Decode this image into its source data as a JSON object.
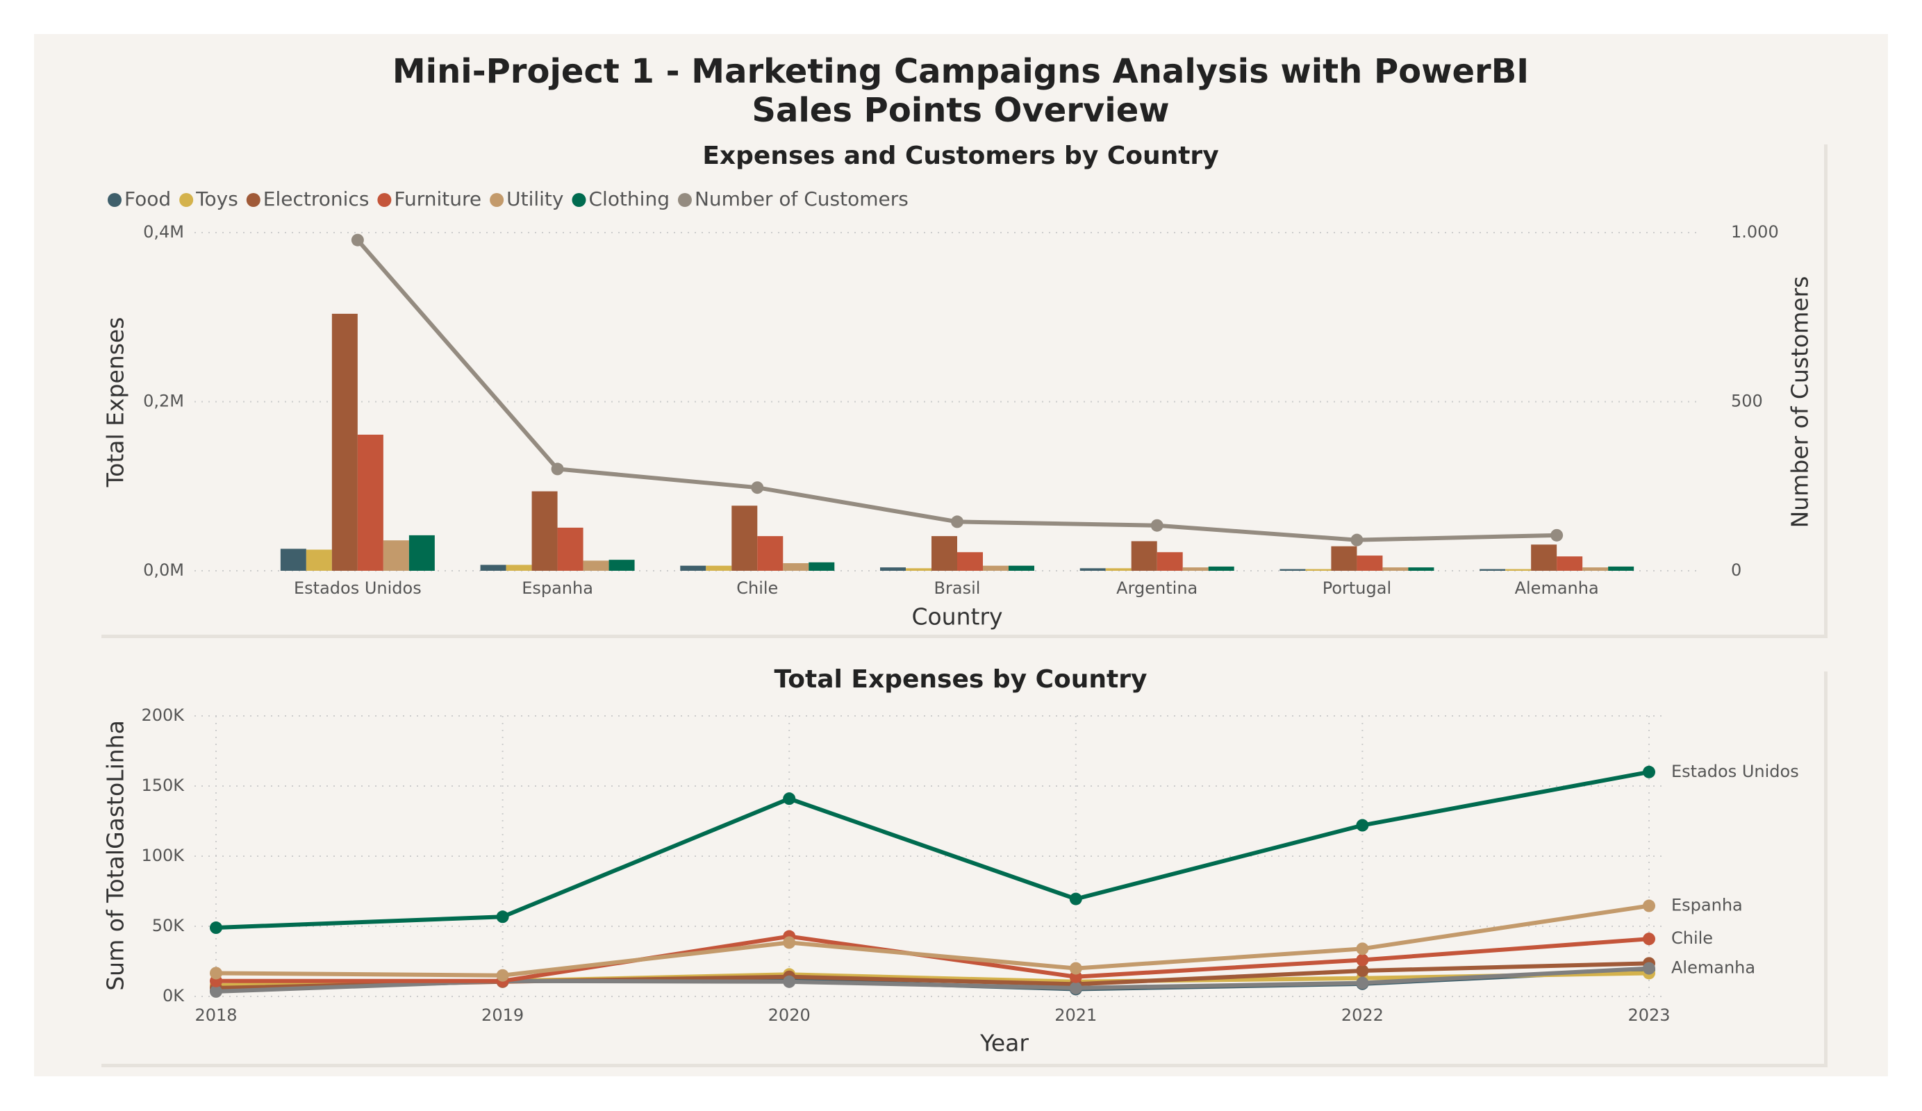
{
  "title": "Mini-Project 1 - Marketing Campaigns Analysis with PowerBI",
  "subtitle": "Sales Points Overview",
  "chart_data": [
    {
      "type": "bar",
      "title": "Expenses and Customers by Country",
      "x_label": "Country",
      "y_label": "Total Expenses",
      "y2_label": "Number of Customers",
      "categories": [
        "Estados Unidos",
        "Espanha",
        "Chile",
        "Brasil",
        "Argentina",
        "Portugal",
        "Alemanha"
      ],
      "series": [
        {
          "name": "Food",
          "color": "#3f5f6b",
          "values": [
            0.026,
            0.007,
            0.006,
            0.004,
            0.003,
            0.002,
            0.002
          ]
        },
        {
          "name": "Toys",
          "color": "#d4b24c",
          "values": [
            0.025,
            0.007,
            0.006,
            0.003,
            0.003,
            0.002,
            0.002
          ]
        },
        {
          "name": "Electronics",
          "color": "#a05a38",
          "values": [
            0.304,
            0.094,
            0.077,
            0.041,
            0.035,
            0.029,
            0.031
          ]
        },
        {
          "name": "Furniture",
          "color": "#c4553a",
          "values": [
            0.161,
            0.051,
            0.041,
            0.022,
            0.022,
            0.018,
            0.017
          ]
        },
        {
          "name": "Utility",
          "color": "#c39a6b",
          "values": [
            0.036,
            0.012,
            0.009,
            0.006,
            0.004,
            0.004,
            0.004
          ]
        },
        {
          "name": "Clothing",
          "color": "#006b4f",
          "values": [
            0.042,
            0.013,
            0.01,
            0.006,
            0.005,
            0.004,
            0.005
          ]
        },
        {
          "name": "Number of Customers",
          "color": "#948b80",
          "type": "line",
          "axis": "y2",
          "values": [
            978,
            301,
            246,
            145,
            134,
            91,
            105
          ]
        }
      ],
      "ylim": [
        0,
        0.4
      ],
      "yticks": [
        {
          "value": 0,
          "label": "0,0M"
        },
        {
          "value": 0.2,
          "label": "0,2M"
        },
        {
          "value": 0.4,
          "label": "0,4M"
        }
      ],
      "y2lim": [
        0,
        1000
      ],
      "y2ticks": [
        0,
        500,
        {
          "value": 1000,
          "label": "1.000"
        }
      ],
      "grid": true,
      "legend": "top-left"
    },
    {
      "type": "line",
      "title": "Total Expenses by Country",
      "x_label": "Year",
      "y_label": "Sum of TotalGastoLinha",
      "x": [
        2018,
        2019,
        2020,
        2021,
        2022,
        2023
      ],
      "series": [
        {
          "name": null,
          "color": "#3f5f6b",
          "values": [
            4000,
            11000,
            11500,
            5200,
            9000,
            19000
          ]
        },
        {
          "name": null,
          "color": "#d4b24c",
          "values": [
            7900,
            11000,
            15700,
            10500,
            13000,
            16600
          ]
        },
        {
          "name": null,
          "color": "#a05a38",
          "values": [
            6000,
            10500,
            14000,
            8700,
            18300,
            23600
          ]
        },
        {
          "name": "Alemanha",
          "color": "#7f7f7f",
          "values": [
            3500,
            11000,
            10500,
            6000,
            9600,
            20000
          ]
        },
        {
          "name": "Chile",
          "color": "#c4553a",
          "values": [
            11000,
            11000,
            42800,
            14000,
            26000,
            41000
          ]
        },
        {
          "name": "Espanha",
          "color": "#c39a6b",
          "values": [
            16600,
            15000,
            38400,
            20000,
            34000,
            64600
          ]
        },
        {
          "name": "Estados Unidos",
          "color": "#006b4f",
          "values": [
            49000,
            56800,
            141000,
            69500,
            122000,
            160000
          ]
        }
      ],
      "xlim": [
        2018,
        2023
      ],
      "xticks": [
        2018,
        2019,
        2020,
        2021,
        2022,
        2023
      ],
      "ylim": [
        0,
        200000
      ],
      "yticks": [
        {
          "value": 0,
          "label": "0K"
        },
        {
          "value": 50000,
          "label": "50K"
        },
        {
          "value": 100000,
          "label": "100K"
        },
        {
          "value": 150000,
          "label": "150K"
        },
        {
          "value": 200000,
          "label": "200K"
        }
      ],
      "grid": true
    }
  ]
}
